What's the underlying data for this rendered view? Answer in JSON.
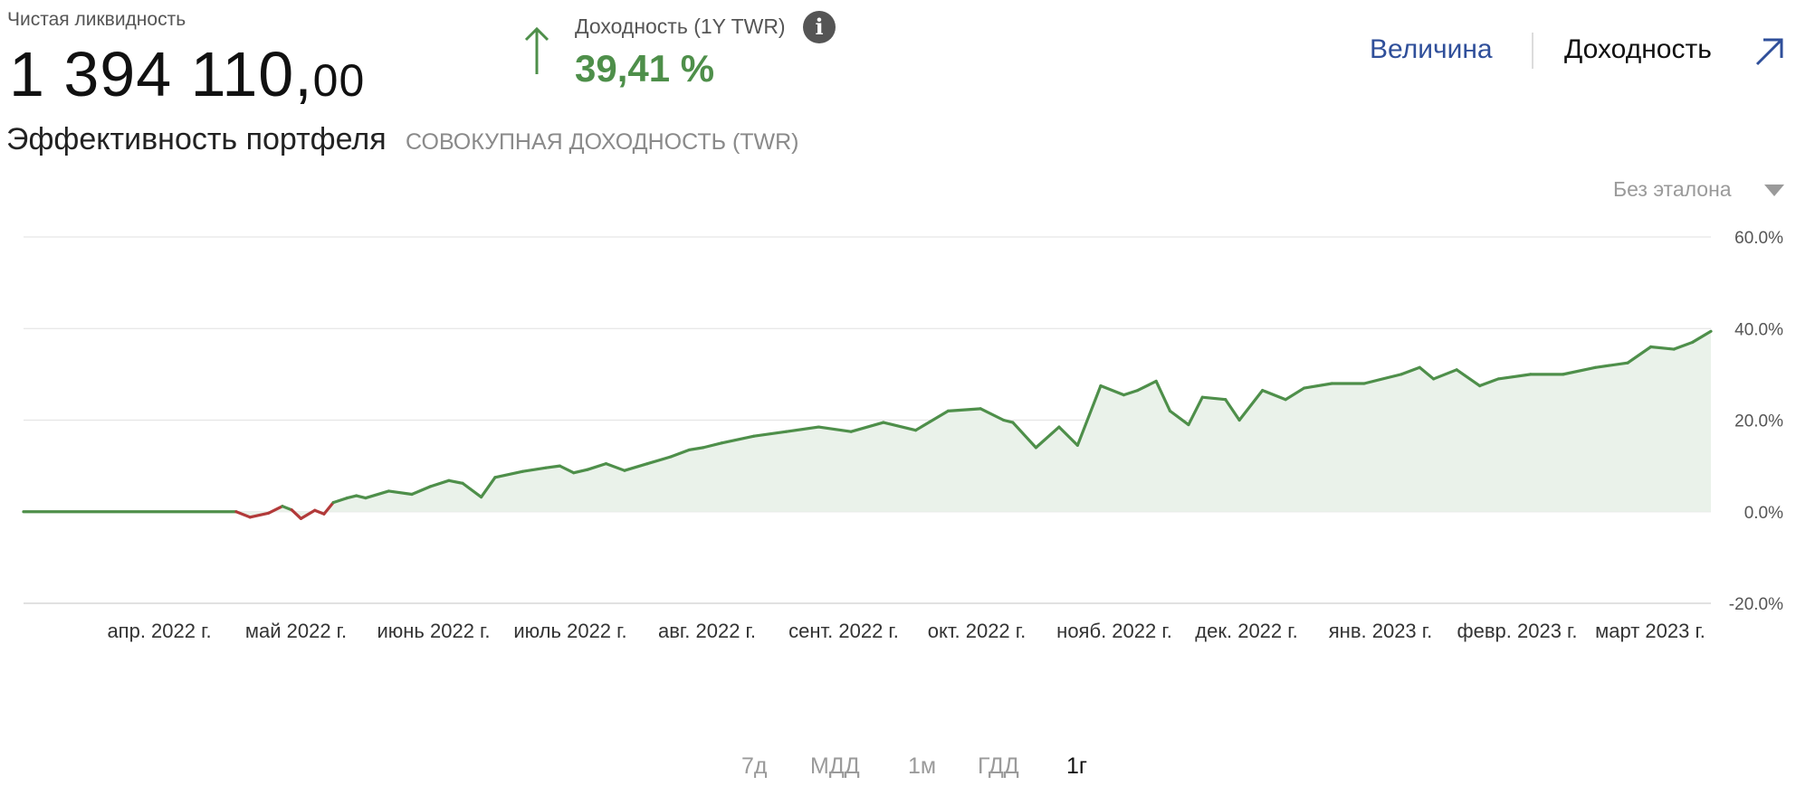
{
  "header": {
    "net_liquidity_label": "Чистая ликвидность",
    "net_liquidity_int": "1 394 110,",
    "net_liquidity_dec": "00",
    "return_label": "Доходность (1Y TWR)",
    "return_value": "39,41 %",
    "info_icon": "info-icon",
    "up_arrow_icon": "arrow-up-icon"
  },
  "tabs": {
    "size_label": "Величина",
    "return_label": "Доходность",
    "expand_icon": "expand-arrow-icon"
  },
  "section": {
    "title": "Эффективность портфеля",
    "subtitle": "СОВОКУПНАЯ ДОХОДНОСТЬ (TWR)"
  },
  "benchmark": {
    "label": "Без эталона",
    "icon": "caret-down-icon"
  },
  "ranges": [
    {
      "label": "7д",
      "active": false
    },
    {
      "label": "МДД",
      "active": false
    },
    {
      "label": "1м",
      "active": false
    },
    {
      "label": "ГДД",
      "active": false
    },
    {
      "label": "1г",
      "active": true
    }
  ],
  "colors": {
    "positive_line": "#4e8f4a",
    "negative_line": "#b23a3a",
    "area_fill": "#eaf2ea",
    "accent_blue": "#2f4f9a"
  },
  "chart_data": {
    "type": "area",
    "title": "",
    "xlabel": "",
    "ylabel": "",
    "ylim": [
      -20,
      60
    ],
    "y_ticks": [
      "60.0%",
      "40.0%",
      "20.0%",
      "0.0%",
      "-20.0%"
    ],
    "x_ticks": [
      "апр. 2022 г.",
      "май 2022 г.",
      "июнь 2022 г.",
      "июль 2022 г.",
      "авг. 2022 г.",
      "сент. 2022 г.",
      "окт. 2022 г.",
      "нояб. 2022 г.",
      "дек. 2022 г.",
      "янв. 2023 г.",
      "февр. 2023 г.",
      "март 2023 г."
    ],
    "grid": true,
    "legend": "none",
    "series": [
      {
        "x": [
          "2022-03-14",
          "2022-04-29",
          "2022-05-02",
          "2022-05-06",
          "2022-05-09",
          "2022-05-11",
          "2022-05-13",
          "2022-05-16",
          "2022-05-18",
          "2022-05-20",
          "2022-05-23",
          "2022-05-25",
          "2022-05-27",
          "2022-06-01",
          "2022-06-06",
          "2022-06-10",
          "2022-06-14",
          "2022-06-17",
          "2022-06-21",
          "2022-06-24",
          "2022-06-30",
          "2022-07-05",
          "2022-07-08",
          "2022-07-11",
          "2022-07-14",
          "2022-07-18",
          "2022-07-22",
          "2022-07-27",
          "2022-08-01",
          "2022-08-05",
          "2022-08-08",
          "2022-08-12",
          "2022-08-19",
          "2022-08-26",
          "2022-09-02",
          "2022-09-09",
          "2022-09-16",
          "2022-09-23",
          "2022-09-30",
          "2022-10-07",
          "2022-10-12",
          "2022-10-14",
          "2022-10-19",
          "2022-10-24",
          "2022-10-28",
          "2022-11-02",
          "2022-11-07",
          "2022-11-10",
          "2022-11-14",
          "2022-11-17",
          "2022-11-21",
          "2022-11-24",
          "2022-11-29",
          "2022-12-02",
          "2022-12-07",
          "2022-12-12",
          "2022-12-16",
          "2022-12-22",
          "2022-12-29",
          "2023-01-06",
          "2023-01-10",
          "2023-01-13",
          "2023-01-18",
          "2023-01-23",
          "2023-01-27",
          "2023-02-03",
          "2023-02-10",
          "2023-02-17",
          "2023-02-24",
          "2023-03-01",
          "2023-03-06",
          "2023-03-10",
          "2023-03-14"
        ],
        "y": [
          0,
          0,
          -1.2,
          -0.3,
          1.2,
          0.4,
          -1.5,
          0.3,
          -0.5,
          2.0,
          3.0,
          3.5,
          3.0,
          4.5,
          3.8,
          5.5,
          6.8,
          6.2,
          3.2,
          7.5,
          8.8,
          9.6,
          10.0,
          8.5,
          9.2,
          10.5,
          9.0,
          10.5,
          12.0,
          13.5,
          14.0,
          15.0,
          16.5,
          17.5,
          18.5,
          17.5,
          19.5,
          17.8,
          22.0,
          22.5,
          20.0,
          19.5,
          14.0,
          18.5,
          14.5,
          27.5,
          25.5,
          26.5,
          28.5,
          22.0,
          19.0,
          25.0,
          24.5,
          20.0,
          26.5,
          24.5,
          27.0,
          28.0,
          28.0,
          30.0,
          31.5,
          29.0,
          31.0,
          27.5,
          29.0,
          30.0,
          30.0,
          31.5,
          32.5,
          36.0,
          35.5,
          37.0,
          39.4
        ]
      }
    ]
  }
}
